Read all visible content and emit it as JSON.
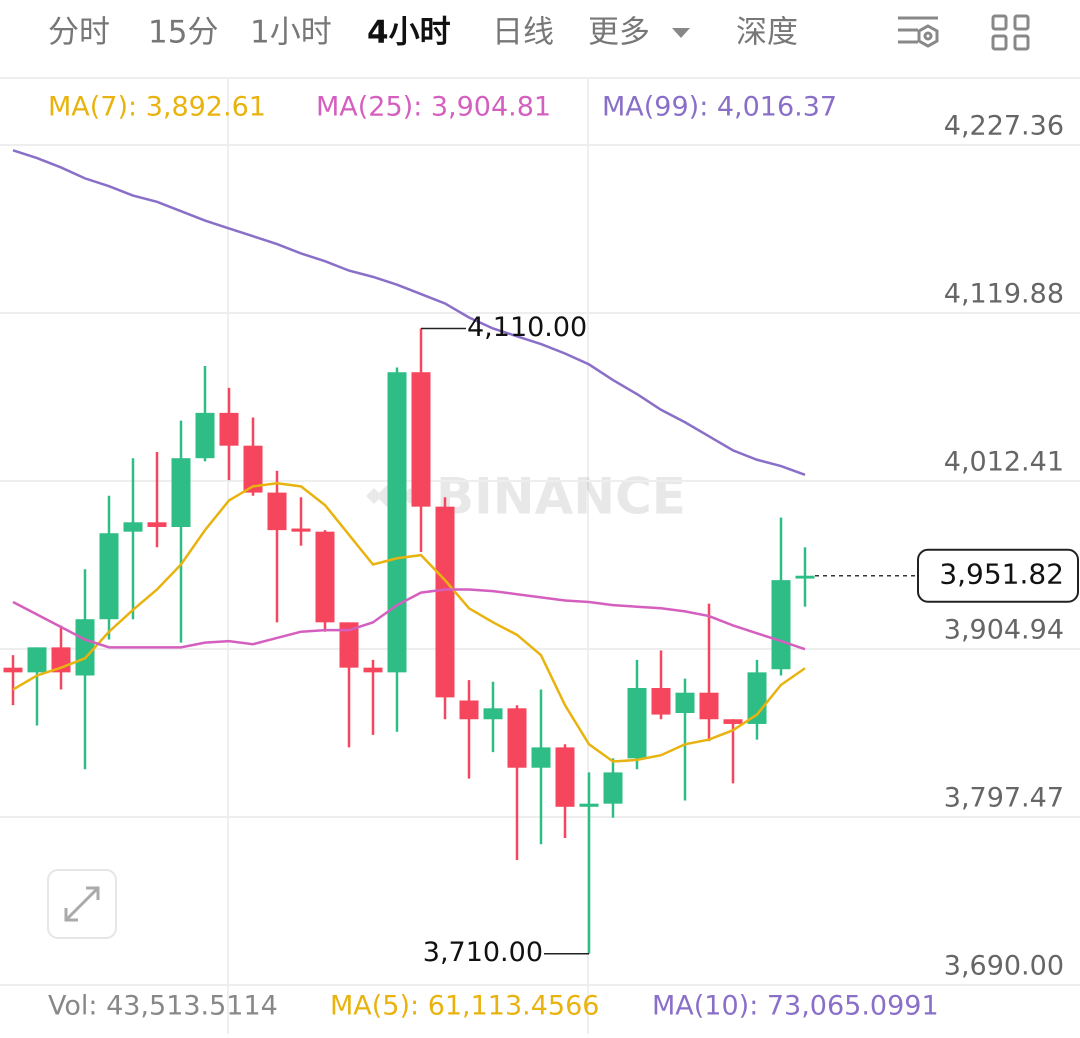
{
  "tabs": [
    "分时",
    "15分",
    "1小时",
    "4小时",
    "日线",
    "更多",
    "深度"
  ],
  "active_tab": 3,
  "chart_data": {
    "type": "candlestick",
    "watermark": "BINANCE",
    "up_color": "#2ebd85",
    "down_color": "#f6465d",
    "open": [
      3893,
      3890,
      3906,
      3888,
      3924,
      3980,
      3986,
      3983,
      4027,
      4056,
      4035,
      4005,
      3982,
      3980,
      3922,
      3893,
      3890,
      4082,
      3996,
      3872,
      3860,
      3867,
      3829,
      3842,
      3804,
      3806,
      3835,
      3880,
      3864,
      3877,
      3860,
      3857,
      3892,
      3950
    ],
    "high": [
      3901,
      3906,
      3920,
      3956,
      4003,
      4027,
      4031,
      4051,
      4086,
      4072,
      4053,
      4019,
      4002,
      3981,
      3922,
      3898,
      4085,
      4110,
      4002,
      3885,
      3884,
      3869,
      3879,
      3844,
      3826,
      3835,
      3898,
      3904,
      3886,
      3934,
      3860,
      3898,
      3989,
      3970
    ],
    "low": [
      3869,
      3856,
      3879,
      3828,
      3911,
      3924,
      3970,
      3909,
      4025,
      4013,
      4003,
      3922,
      3971,
      3916,
      3842,
      3850,
      3852,
      3967,
      3860,
      3822,
      3839,
      3770,
      3780,
      3784,
      3710,
      3797,
      3828,
      3860,
      3808,
      3846,
      3819,
      3847,
      3888,
      3932
    ],
    "close": [
      3890,
      3906,
      3890,
      3924,
      3979,
      3986,
      3983,
      4027,
      4056,
      4035,
      4005,
      3981,
      3980,
      3922,
      3893,
      3890,
      4082,
      3996,
      3874,
      3860,
      3867,
      3829,
      3842,
      3804,
      3806,
      3826,
      3880,
      3863,
      3877,
      3860,
      3857,
      3890,
      3949,
      3951.82
    ],
    "series": [
      {
        "name": "MA(7)",
        "legend": "MA(7): 3,892.61",
        "color": "#e9b30f",
        "values": [
          3879,
          3888,
          3893,
          3899,
          3916,
          3930,
          3943,
          3959,
          3981,
          4000,
          4009,
          4011,
          4009,
          3997,
          3978,
          3959,
          3963,
          3965,
          3949,
          3931,
          3922,
          3914,
          3901,
          3869,
          3844,
          3833,
          3834,
          3837,
          3844,
          3847,
          3853,
          3863,
          3882,
          3892.61
        ]
      },
      {
        "name": "MA(25)",
        "legend": "MA(25): 3,904.81",
        "color": "#d45fbf",
        "values": [
          3935,
          3927,
          3919,
          3911,
          3906,
          3906,
          3906,
          3906,
          3909,
          3910,
          3908,
          3912,
          3916,
          3917,
          3917,
          3922,
          3933,
          3941,
          3943,
          3943,
          3942,
          3940,
          3938,
          3936,
          3935,
          3933,
          3932,
          3931,
          3929,
          3926,
          3920,
          3915,
          3910,
          3904.81
        ]
      },
      {
        "name": "MA(99)",
        "legend": "MA(99): 4,016.37",
        "color": "#8a6fc9",
        "values": [
          4224,
          4219,
          4213,
          4206,
          4201,
          4195,
          4191,
          4185,
          4179,
          4174,
          4169,
          4164,
          4158,
          4153,
          4147,
          4143,
          4138,
          4132,
          4126,
          4117,
          4110,
          4105,
          4100,
          4094,
          4087,
          4077,
          4068,
          4058,
          4050,
          4041,
          4032,
          4026,
          4022,
          4016.37
        ]
      }
    ],
    "ylim": [
      3690,
      4227.36
    ],
    "yticks": [
      {
        "value": 4227.36,
        "label": "4,227.36"
      },
      {
        "value": 4119.88,
        "label": "4,119.88"
      },
      {
        "value": 4012.41,
        "label": "4,012.41"
      },
      {
        "value": 3904.94,
        "label": "3,904.94"
      },
      {
        "value": 3797.47,
        "label": "3,797.47"
      },
      {
        "value": 3690,
        "label": "3,690.00"
      }
    ],
    "grid": true,
    "high_marker": {
      "value": 4110,
      "label": "4,110.00"
    },
    "low_marker": {
      "value": 3710,
      "label": "3,710.00"
    },
    "last_price": {
      "value": 3951.82,
      "label": "3,951.82"
    }
  },
  "volume": {
    "vol": "Vol: 43,513.5114",
    "ma5": "MA(5): 61,113.4566",
    "ma10": "MA(10): 73,065.0991"
  }
}
